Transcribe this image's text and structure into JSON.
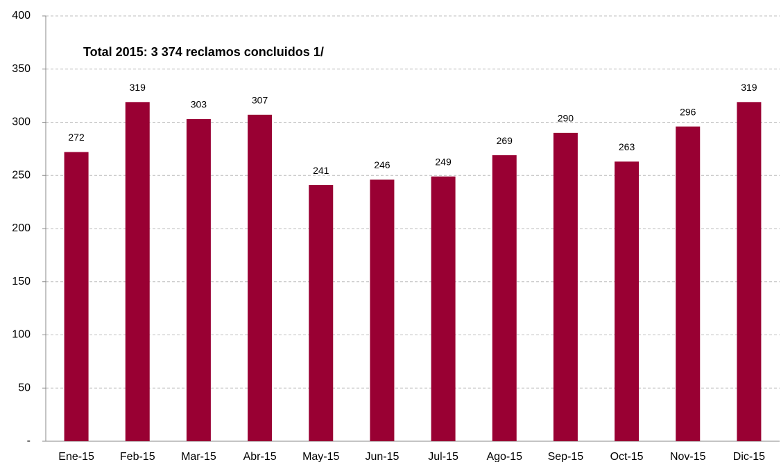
{
  "chart_data": {
    "type": "bar",
    "annotation": "Total 2015: 3 374 reclamos concluidos 1/",
    "categories": [
      "Ene-15",
      "Feb-15",
      "Mar-15",
      "Abr-15",
      "May-15",
      "Jun-15",
      "Jul-15",
      "Ago-15",
      "Sep-15",
      "Oct-15",
      "Nov-15",
      "Dic-15"
    ],
    "values": [
      272,
      319,
      303,
      307,
      241,
      246,
      249,
      269,
      290,
      263,
      296,
      319
    ],
    "color": "#990033",
    "ylim": [
      0,
      400
    ],
    "yticks": [
      {
        "value": 0,
        "label": "-"
      },
      50,
      100,
      150,
      200,
      250,
      300,
      350,
      400
    ],
    "grid": true
  }
}
